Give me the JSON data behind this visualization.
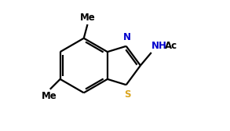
{
  "background_color": "#ffffff",
  "bond_color": "#000000",
  "N_color": "#0000cd",
  "S_color": "#daa520",
  "text_color": "#000000",
  "figsize": [
    2.93,
    1.67
  ],
  "dpi": 100,
  "lw": 1.6,
  "xlim": [
    0,
    8
  ],
  "ylim": [
    0,
    5
  ]
}
